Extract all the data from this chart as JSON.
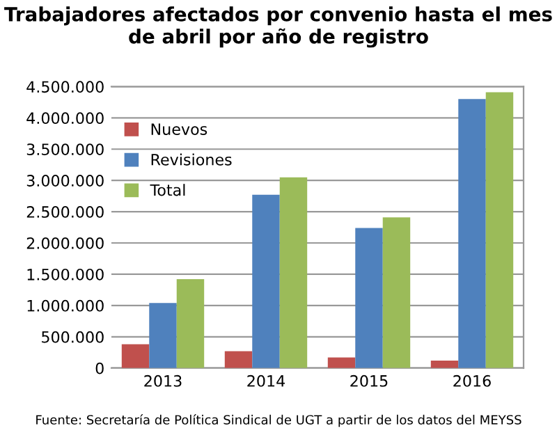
{
  "chart_data": {
    "type": "bar",
    "title": "Trabajadores afectados por convenio hasta el mes de abril por año de registro",
    "categories": [
      "2013",
      "2014",
      "2015",
      "2016"
    ],
    "series": [
      {
        "name": "Nuevos",
        "color": "#c0504d",
        "values": [
          380000,
          270000,
          170000,
          120000
        ]
      },
      {
        "name": "Revisiones",
        "color": "#4f81bd",
        "values": [
          1040000,
          2770000,
          2240000,
          4300000
        ]
      },
      {
        "name": "Total",
        "color": "#9bbb59",
        "values": [
          1420000,
          3050000,
          2410000,
          4410000
        ]
      }
    ],
    "ylim": [
      0,
      4500000
    ],
    "yticks": [
      0,
      {
        "value": 500000,
        "label": "500.000"
      },
      {
        "value": 1000000,
        "label": "1.000.000"
      },
      {
        "value": 1500000,
        "label": "1.500.000"
      },
      {
        "value": 2000000,
        "label": "2.000.000"
      },
      {
        "value": 2500000,
        "label": "2.500.000"
      },
      {
        "value": 3000000,
        "label": "3.000.000"
      },
      {
        "value": 3500000,
        "label": "3.500.000"
      },
      {
        "value": 4000000,
        "label": "4.000.000"
      },
      {
        "value": 4500000,
        "label": "4.500.000"
      }
    ],
    "grid": "y",
    "legend": "top left",
    "annotations": [
      "Fuente: Secretaría de Política Sindical de UGT a partir de los datos del MEYSS"
    ]
  }
}
